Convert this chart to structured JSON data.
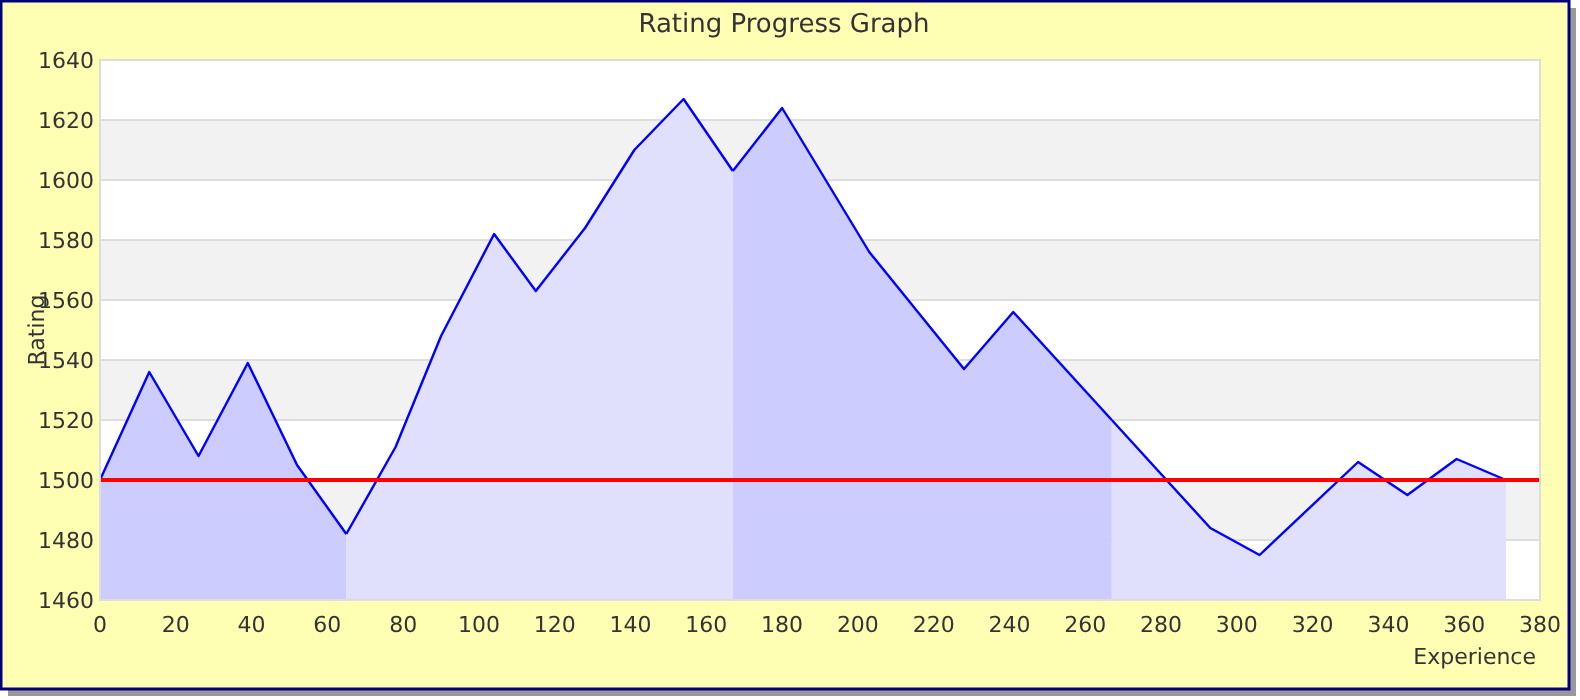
{
  "chart_data": {
    "type": "area",
    "title": "Rating Progress Graph",
    "xlabel": "Experience",
    "ylabel": "Rating",
    "xlim": [
      0,
      380
    ],
    "xticks": [
      0,
      20,
      40,
      60,
      80,
      100,
      120,
      140,
      160,
      180,
      200,
      220,
      240,
      260,
      280,
      300,
      320,
      340,
      360,
      380
    ],
    "ylim": [
      1460,
      1640
    ],
    "yticks": [
      1460,
      1480,
      1500,
      1520,
      1540,
      1560,
      1580,
      1600,
      1620,
      1640
    ],
    "grid": "y",
    "ref_lines": [
      {
        "axis": "y",
        "value": 1500,
        "color": "#ff0000"
      }
    ],
    "series": [
      {
        "color": "#ccccff",
        "x": [
          0,
          13,
          26,
          39,
          52,
          65
        ],
        "values": [
          1500,
          1536,
          1508,
          1539,
          1505,
          1482
        ]
      },
      {
        "color": "#e0e0fc",
        "x": [
          65,
          78,
          90,
          104,
          115,
          128,
          141,
          154,
          167
        ],
        "values": [
          1482,
          1511,
          1548,
          1582,
          1563,
          1584,
          1610,
          1627,
          1603
        ]
      },
      {
        "color": "#ccccff",
        "x": [
          167,
          180,
          203,
          228,
          241,
          267
        ],
        "values": [
          1603,
          1624,
          1576,
          1537,
          1556,
          1520
        ]
      },
      {
        "color": "#e0e0fc",
        "x": [
          267,
          293,
          306,
          332,
          345,
          358,
          371
        ],
        "values": [
          1520,
          1484,
          1475,
          1506,
          1495,
          1507,
          1500
        ]
      }
    ]
  }
}
